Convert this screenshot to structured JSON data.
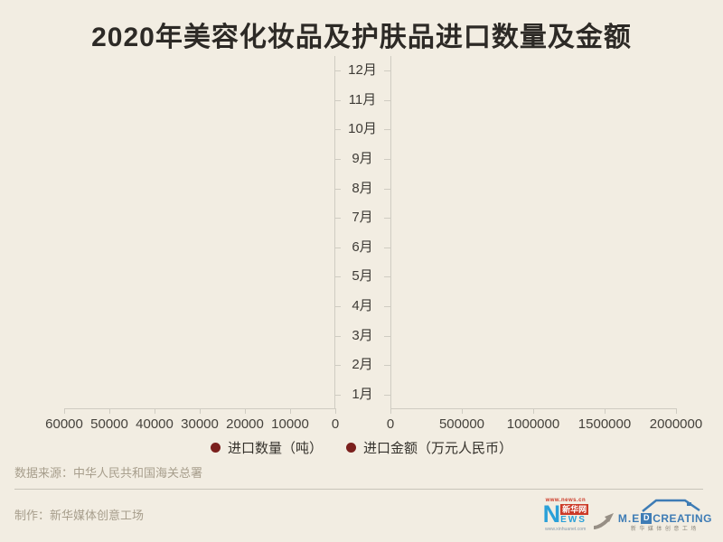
{
  "title": "2020年美容化妆品及护肤品进口数量及金额",
  "chart_data": {
    "type": "bar",
    "subtype": "horizontal-tornado",
    "title": "2020年美容化妆品及护肤品进口数量及金额",
    "categories": [
      "1月",
      "2月",
      "3月",
      "4月",
      "5月",
      "6月",
      "7月",
      "8月",
      "9月",
      "10月",
      "11月",
      "12月"
    ],
    "series": [
      {
        "name": "进口数量（吨）",
        "axis": "left",
        "color": "#7B201D",
        "values": []
      },
      {
        "name": "进口金额（万元人民币）",
        "axis": "right",
        "color": "#7B201D",
        "values": []
      }
    ],
    "left_axis": {
      "tick_labels": [
        "60000",
        "50000",
        "40000",
        "30000",
        "20000",
        "10000",
        "0"
      ],
      "range": [
        0,
        60000
      ],
      "direction": "inverted"
    },
    "right_axis": {
      "tick_labels": [
        "0",
        "500000",
        "1000000",
        "1500000",
        "2000000"
      ],
      "range": [
        0,
        2000000
      ]
    },
    "grid": false,
    "legend_position": "bottom",
    "bars_rendered": false
  },
  "legend": [
    {
      "label": "进口数量（吨）",
      "color": "#7B201D"
    },
    {
      "label": "进口金额（万元人民币）",
      "color": "#7B201D"
    }
  ],
  "footer": {
    "source": "数据来源：中华人民共和国海关总署",
    "credit": "制作：新华媒体创意工场"
  },
  "logos": {
    "xinhua": {
      "url_top": "www.news.cn",
      "letter": "N",
      "boxed_name": "新华网",
      "letters_rest": "EWS",
      "url_bottom": "www.xinhuanet.com"
    },
    "medcreating": {
      "pre": "M.E",
      "boxed": "D",
      "rest": "CREATING",
      "subtitle": "新华媒体创意工场"
    }
  },
  "colors": {
    "background": "#F2EDE2",
    "marker": "#7B201D",
    "axis": "#CFCCC2",
    "title_text": "#2D2A26",
    "axis_text": "#45423C",
    "muted_text": "#A79E8C",
    "xinhua_red": "#CC3A28",
    "xinhua_blue": "#2AA0D8",
    "med_blue": "#3E7CB5"
  }
}
